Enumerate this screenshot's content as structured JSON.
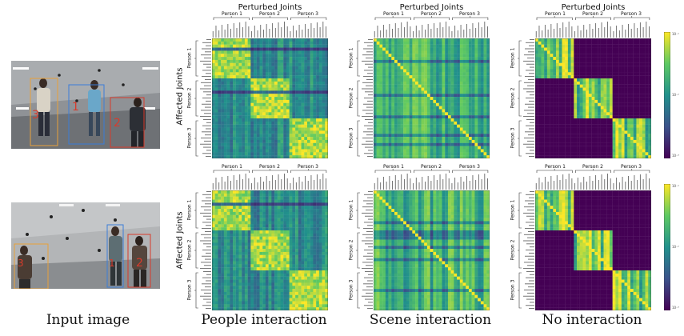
{
  "top_title": "Perturbed Joints",
  "y_title": "Affected Joints",
  "persons": [
    "Person 1",
    "Person 2",
    "Person 3"
  ],
  "captions": {
    "input": "Input image",
    "people": "People interaction",
    "scene": "Scene interaction",
    "none": "No interaction"
  },
  "photos": {
    "top_labels": [
      "3",
      "1",
      "2"
    ],
    "bottom_labels": [
      "3",
      "1",
      "2"
    ]
  },
  "colorbar_ticks": [
    "10⁻¹",
    "10⁻²",
    "10⁻³"
  ],
  "colors": {
    "viridis_low": "#440154",
    "viridis_mid": "#21918c",
    "viridis_high": "#fde725",
    "box_orange": "#e8a13a",
    "box_blue": "#3b7dd8",
    "box_red": "#d83b2b"
  }
}
